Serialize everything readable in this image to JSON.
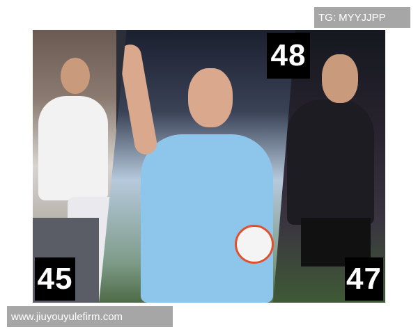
{
  "watermark_top": "TG: MYYJJPP",
  "watermark_bottom": "www.jiuyouyulefirm.com",
  "numbers": {
    "left": "45",
    "middle": "48",
    "right": "47"
  },
  "colors": {
    "city_blue": "#8ec5ea",
    "real_white": "#f2f2f2",
    "bayern_black": "#1c1c22",
    "label_bg": "#000000",
    "watermark_bg": "#a6a6a6"
  }
}
